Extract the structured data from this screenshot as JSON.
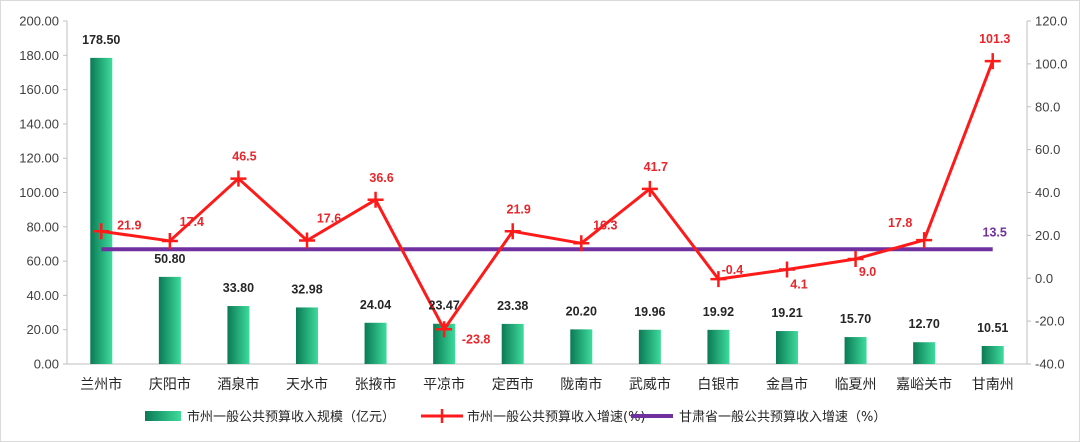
{
  "chart_data": {
    "type": "bar",
    "categories": [
      "兰州市",
      "庆阳市",
      "酒泉市",
      "天水市",
      "张掖市",
      "平凉市",
      "定西市",
      "陇南市",
      "武威市",
      "白银市",
      "金昌市",
      "临夏州",
      "嘉峪关市",
      "甘南州"
    ],
    "series": [
      {
        "name": "市州一般公共预算收入规模（亿元）",
        "type": "bar",
        "axis": "left",
        "values": [
          178.5,
          50.8,
          33.8,
          32.98,
          24.04,
          23.47,
          23.38,
          20.2,
          19.96,
          19.92,
          19.21,
          15.7,
          12.7,
          10.51
        ],
        "labels": [
          "178.50",
          "50.80",
          "33.80",
          "32.98",
          "24.04",
          "23.47",
          "23.38",
          "20.20",
          "19.96",
          "19.92",
          "19.21",
          "15.70",
          "12.70",
          "10.51"
        ]
      },
      {
        "name": "市州一般公共预算收入增速(%)",
        "type": "line",
        "axis": "right",
        "values": [
          21.9,
          17.4,
          46.5,
          17.6,
          36.6,
          -23.8,
          21.9,
          16.3,
          41.7,
          -0.4,
          4.1,
          9.0,
          17.8,
          101.3
        ],
        "labels": [
          "21.9",
          "17.4",
          "46.5",
          "17.6",
          "36.6",
          "-23.8",
          "21.9",
          "16.3",
          "41.7",
          "-0.4",
          "4.1",
          "9.0",
          "17.8",
          "101.3"
        ]
      },
      {
        "name": "甘肃省一般公共预算收入增速（%）",
        "type": "line",
        "axis": "right",
        "value": 13.5,
        "label": "13.5"
      }
    ],
    "y_left": {
      "ylim": [
        0,
        200
      ],
      "ticks": [
        "0.00",
        "20.00",
        "40.00",
        "60.00",
        "80.00",
        "100.00",
        "120.00",
        "140.00",
        "160.00",
        "180.00",
        "200.00"
      ]
    },
    "y_right": {
      "ylim": [
        -40,
        120
      ],
      "ticks": [
        "-40.0",
        "-20.0",
        "0.0",
        "20.0",
        "40.0",
        "60.0",
        "80.0",
        "100.0",
        "120.0"
      ]
    },
    "grid": false,
    "legend_position": "bottom"
  },
  "colors": {
    "bar_dark": "#0b7a55",
    "bar_light": "#3ddc9c",
    "growth_line": "#ff1a1a",
    "province_line": "#7030a0",
    "axis": "#bfbfbf"
  }
}
